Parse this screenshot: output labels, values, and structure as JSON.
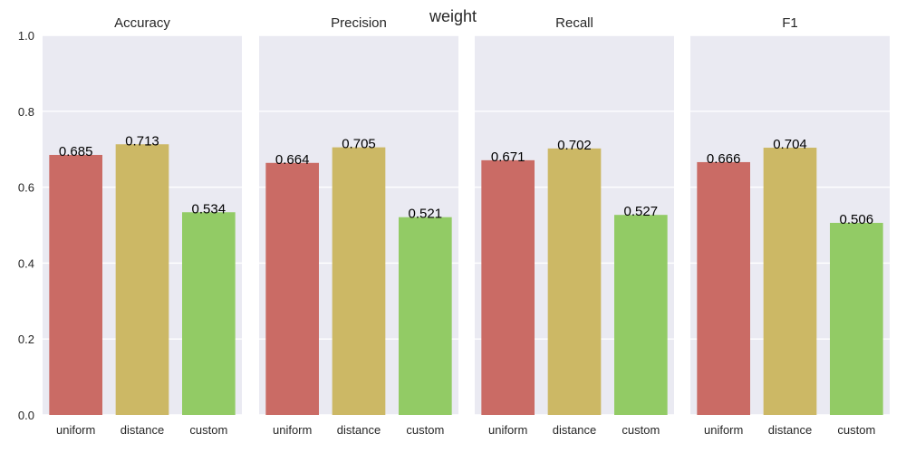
{
  "chart_data": {
    "type": "bar",
    "title": "weight",
    "categories": [
      "uniform",
      "distance",
      "custom"
    ],
    "colors": [
      "#ca6b65",
      "#ccb865",
      "#92cb65"
    ],
    "background_color": "#eaeaf2",
    "ylim": [
      0,
      1.0
    ],
    "yticks": [
      "0.0",
      "0.2",
      "0.4",
      "0.6",
      "0.8",
      "1.0"
    ],
    "grid": true,
    "panels": [
      {
        "title": "Accuracy",
        "values": [
          0.685,
          0.713,
          0.534
        ],
        "labels": [
          "0.685",
          "0.713",
          "0.534"
        ]
      },
      {
        "title": "Precision",
        "values": [
          0.664,
          0.705,
          0.521
        ],
        "labels": [
          "0.664",
          "0.705",
          "0.521"
        ]
      },
      {
        "title": "Recall",
        "values": [
          0.671,
          0.702,
          0.527
        ],
        "labels": [
          "0.671",
          "0.702",
          "0.527"
        ]
      },
      {
        "title": "F1",
        "values": [
          0.666,
          0.704,
          0.506
        ],
        "labels": [
          "0.666",
          "0.704",
          "0.506"
        ]
      }
    ]
  }
}
